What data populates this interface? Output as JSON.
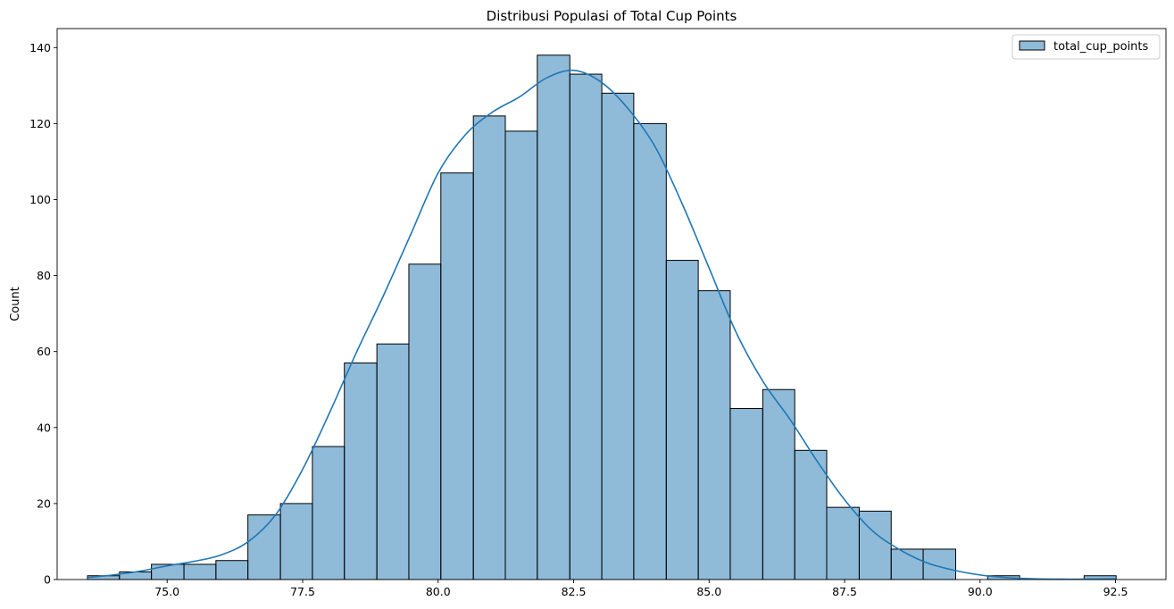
{
  "chart_data": {
    "type": "bar",
    "title": "Distribusi Populasi of Total Cup Points",
    "xlabel": "",
    "ylabel": "Count",
    "xlim": [
      72.97,
      93.43
    ],
    "ylim": [
      0,
      145
    ],
    "xticks": [
      75.0,
      77.5,
      80.0,
      82.5,
      85.0,
      87.5,
      90.0,
      92.5
    ],
    "xtick_labels": [
      "75.0",
      "77.5",
      "80.0",
      "82.5",
      "85.0",
      "87.5",
      "90.0",
      "92.5"
    ],
    "yticks": [
      0,
      20,
      40,
      60,
      80,
      100,
      120,
      140
    ],
    "ytick_labels": [
      "0",
      "20",
      "40",
      "60",
      "80",
      "100",
      "120",
      "140"
    ],
    "bin_edges": [
      73.53,
      74.12,
      74.71,
      75.31,
      75.9,
      76.49,
      77.09,
      77.68,
      78.27,
      78.87,
      79.46,
      80.05,
      80.65,
      81.24,
      81.83,
      82.43,
      83.02,
      83.61,
      84.21,
      84.8,
      85.39,
      85.99,
      86.58,
      87.17,
      87.77,
      88.36,
      88.95,
      89.55,
      90.14,
      90.73,
      91.33,
      91.92,
      92.51
    ],
    "counts": [
      1,
      2,
      4,
      4,
      5,
      17,
      20,
      35,
      57,
      62,
      83,
      107,
      122,
      118,
      138,
      133,
      128,
      120,
      84,
      76,
      45,
      50,
      34,
      19,
      18,
      8,
      8,
      0,
      1,
      0,
      0,
      1
    ],
    "series": [
      {
        "name": "total_cup_points",
        "color": "#1f77b4",
        "fill_alpha": 0.5,
        "edge_color": "#000000"
      }
    ],
    "kde": {
      "x": [
        73.53,
        74.0,
        74.5,
        75.0,
        75.5,
        76.0,
        76.5,
        77.0,
        77.5,
        78.0,
        78.5,
        79.0,
        79.5,
        80.0,
        80.5,
        81.0,
        81.5,
        82.0,
        82.5,
        83.0,
        83.5,
        84.0,
        84.5,
        85.0,
        85.5,
        86.0,
        86.5,
        87.0,
        87.5,
        88.0,
        88.5,
        89.0,
        89.5,
        90.0,
        90.5,
        91.0,
        91.5,
        92.0,
        92.51
      ],
      "y": [
        0.5,
        1.2,
        2.2,
        3.6,
        4.8,
        6.5,
        10.0,
        17.0,
        29.0,
        44.0,
        60.0,
        75.0,
        91.0,
        107.0,
        117.0,
        123.0,
        127.0,
        132.0,
        134.0,
        131.0,
        124.0,
        114.0,
        99.0,
        82.0,
        65.0,
        52.0,
        42.0,
        31.0,
        21.0,
        13.0,
        8.0,
        4.5,
        2.5,
        1.2,
        0.5,
        0.2,
        0.1,
        0.1,
        0.2
      ]
    },
    "grid": false,
    "legend": {
      "position": "top-right",
      "entries": [
        "total_cup_points"
      ]
    }
  }
}
